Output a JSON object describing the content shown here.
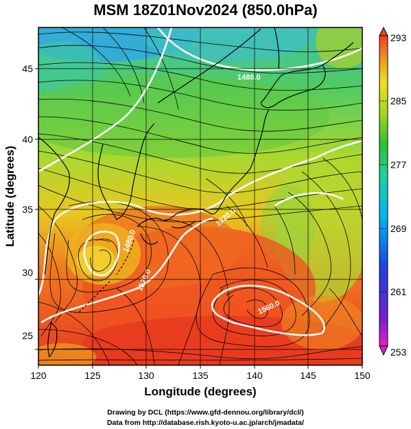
{
  "title": "MSM 18Z01Nov2024 (850.0hPa)",
  "map": {
    "lon_range": [
      120,
      150
    ],
    "lat_range": [
      22.5,
      47.5
    ],
    "x_ticks": [
      "120",
      "125",
      "130",
      "135",
      "140",
      "145",
      "150"
    ],
    "y_ticks": [
      "25",
      "30",
      "35",
      "40",
      "45"
    ],
    "xlabel": "Longitude (degrees)",
    "ylabel": "Latitude  (degrees)",
    "contour_labels": [
      "1480.0",
      "1520.0",
      "1560.0",
      "1480.0",
      "1520.0"
    ],
    "field": "temperature shaded, streamlines, geopotential height contours"
  },
  "colorbar": {
    "ticks": [
      "293",
      "285",
      "277",
      "269",
      "261",
      "253"
    ],
    "min": 253,
    "max": 293,
    "colors": [
      "#e020c0",
      "#6020d0",
      "#2040e0",
      "#00b0f0",
      "#20d0a0",
      "#30c030",
      "#a0d820",
      "#f0e020",
      "#f09020",
      "#f04020"
    ]
  },
  "credits": {
    "line1": "Drawing by DCL (https://www.gfd-dennou.org/library/dcl/)",
    "line2": "Data from http://database.rish.kyoto-u.ac.jp/arch/jmadata/"
  }
}
